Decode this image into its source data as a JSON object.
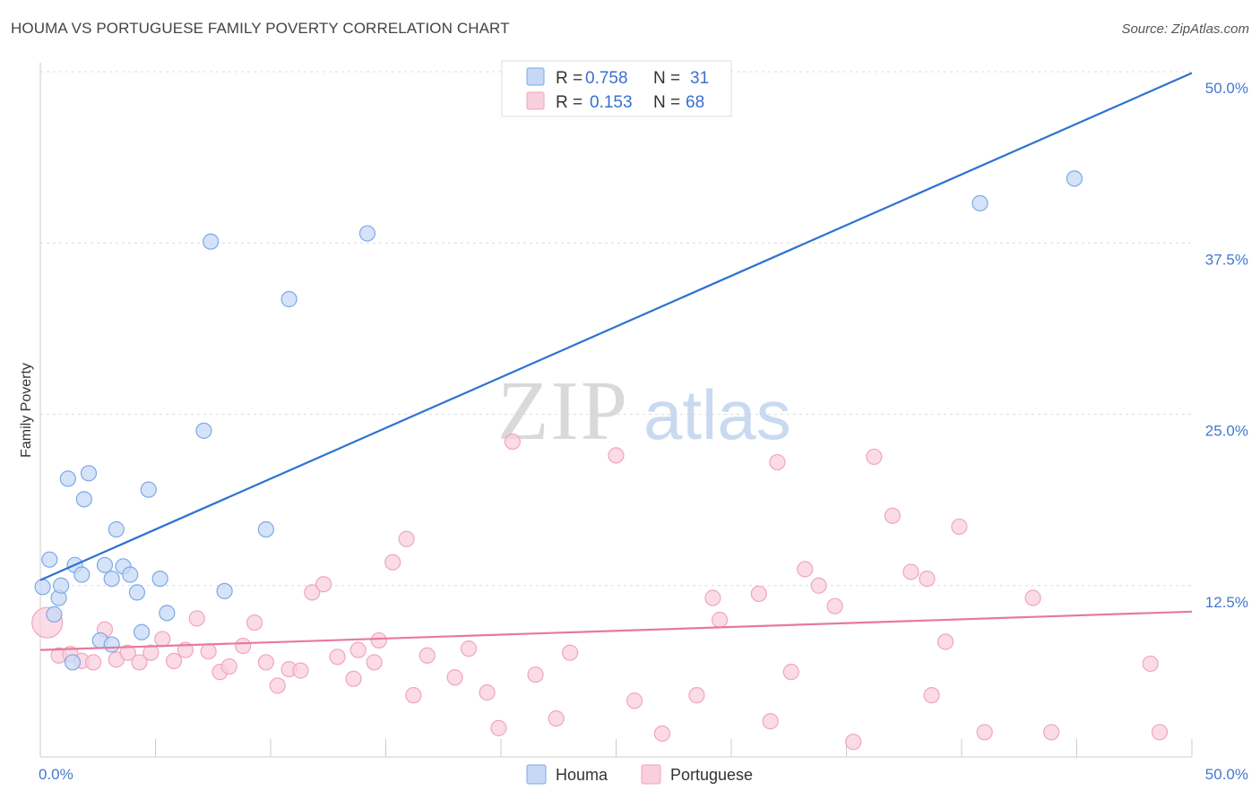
{
  "title": "HOUMA VS PORTUGUESE FAMILY POVERTY CORRELATION CHART",
  "source": "Source: ZipAtlas.com",
  "watermark": {
    "zip": "ZIP",
    "atlas": "atlas"
  },
  "legend": {
    "rows": [
      {
        "r_label": "R =",
        "r_value": "0.758",
        "n_label": "N =",
        "n_value": "31",
        "color": "#7ea8e8",
        "fill": "#c5d9f5"
      },
      {
        "r_label": "R =",
        "r_value": "0.153",
        "n_label": "N =",
        "n_value": "68",
        "color": "#f0a6bd",
        "fill": "#f9cfdc"
      }
    ]
  },
  "chart_data": {
    "type": "scatter",
    "title": "HOUMA VS PORTUGUESE FAMILY POVERTY CORRELATION CHART",
    "xlabel": "",
    "ylabel": "Family Poverty",
    "xlim": [
      0,
      50
    ],
    "ylim": [
      0,
      50
    ],
    "x_tick_labels": [
      "0.0%",
      "50.0%"
    ],
    "y_ticks": [
      12.5,
      25.0,
      37.5,
      50.0
    ],
    "y_tick_labels": [
      "12.5%",
      "25.0%",
      "37.5%",
      "50.0%"
    ],
    "grid": true,
    "series": [
      {
        "name": "Houma",
        "color": "#2d72d2",
        "point_fill": "#c5d9f5",
        "point_stroke": "#7ea8e8",
        "trend": {
          "x": [
            0,
            50
          ],
          "y": [
            12.9,
            49.9
          ]
        },
        "points": [
          [
            0.1,
            12.4
          ],
          [
            0.4,
            14.4
          ],
          [
            0.6,
            10.4
          ],
          [
            0.8,
            11.6
          ],
          [
            0.9,
            12.5
          ],
          [
            1.2,
            20.3
          ],
          [
            1.4,
            6.9
          ],
          [
            1.5,
            14.0
          ],
          [
            1.8,
            13.3
          ],
          [
            1.9,
            18.8
          ],
          [
            2.1,
            20.7
          ],
          [
            2.6,
            8.5
          ],
          [
            2.8,
            14.0
          ],
          [
            3.1,
            8.2
          ],
          [
            3.1,
            13.0
          ],
          [
            3.3,
            16.6
          ],
          [
            3.6,
            13.9
          ],
          [
            3.9,
            13.3
          ],
          [
            4.2,
            12.0
          ],
          [
            4.4,
            9.1
          ],
          [
            4.7,
            19.5
          ],
          [
            5.2,
            13.0
          ],
          [
            5.5,
            10.5
          ],
          [
            7.1,
            23.8
          ],
          [
            7.4,
            37.6
          ],
          [
            8.0,
            12.1
          ],
          [
            9.8,
            16.6
          ],
          [
            10.8,
            33.4
          ],
          [
            14.2,
            38.2
          ],
          [
            40.8,
            40.4
          ],
          [
            44.9,
            42.2
          ]
        ]
      },
      {
        "name": "Portuguese",
        "color": "#e8799c",
        "point_fill": "#f9cfdc",
        "point_stroke": "#f0a6bd",
        "trend": {
          "x": [
            0,
            50
          ],
          "y": [
            7.8,
            10.6
          ]
        },
        "points": [
          [
            0.3,
            9.8
          ],
          [
            0.8,
            7.4
          ],
          [
            1.3,
            7.5
          ],
          [
            1.8,
            7.0
          ],
          [
            2.3,
            6.9
          ],
          [
            2.8,
            9.3
          ],
          [
            3.3,
            7.1
          ],
          [
            3.8,
            7.6
          ],
          [
            4.3,
            6.9
          ],
          [
            4.8,
            7.6
          ],
          [
            5.3,
            8.6
          ],
          [
            5.8,
            7.0
          ],
          [
            6.3,
            7.8
          ],
          [
            6.8,
            10.1
          ],
          [
            7.3,
            7.7
          ],
          [
            7.8,
            6.2
          ],
          [
            8.2,
            6.6
          ],
          [
            8.8,
            8.1
          ],
          [
            9.3,
            9.8
          ],
          [
            9.8,
            6.9
          ],
          [
            10.3,
            5.2
          ],
          [
            10.8,
            6.4
          ],
          [
            11.3,
            6.3
          ],
          [
            11.8,
            12.0
          ],
          [
            12.3,
            12.6
          ],
          [
            12.9,
            7.3
          ],
          [
            13.6,
            5.7
          ],
          [
            13.8,
            7.8
          ],
          [
            14.5,
            6.9
          ],
          [
            14.7,
            8.5
          ],
          [
            15.3,
            14.2
          ],
          [
            15.9,
            15.9
          ],
          [
            16.2,
            4.5
          ],
          [
            16.8,
            7.4
          ],
          [
            18.0,
            5.8
          ],
          [
            18.6,
            7.9
          ],
          [
            19.4,
            4.7
          ],
          [
            19.9,
            2.1
          ],
          [
            20.5,
            23.0
          ],
          [
            21.5,
            6.0
          ],
          [
            22.4,
            2.8
          ],
          [
            23.0,
            7.6
          ],
          [
            25.0,
            22.0
          ],
          [
            25.8,
            4.1
          ],
          [
            27.0,
            1.7
          ],
          [
            28.5,
            4.5
          ],
          [
            29.2,
            11.6
          ],
          [
            29.5,
            10.0
          ],
          [
            31.2,
            11.9
          ],
          [
            31.7,
            2.6
          ],
          [
            32.0,
            21.5
          ],
          [
            32.6,
            6.2
          ],
          [
            33.2,
            13.7
          ],
          [
            33.8,
            12.5
          ],
          [
            34.5,
            11.0
          ],
          [
            35.3,
            1.1
          ],
          [
            36.2,
            21.9
          ],
          [
            37.0,
            17.6
          ],
          [
            37.8,
            13.5
          ],
          [
            38.5,
            13.0
          ],
          [
            38.7,
            4.5
          ],
          [
            39.3,
            8.4
          ],
          [
            39.9,
            16.8
          ],
          [
            41.0,
            1.8
          ],
          [
            43.1,
            11.6
          ],
          [
            43.9,
            1.8
          ],
          [
            48.2,
            6.8
          ],
          [
            48.6,
            1.8
          ]
        ]
      }
    ]
  }
}
